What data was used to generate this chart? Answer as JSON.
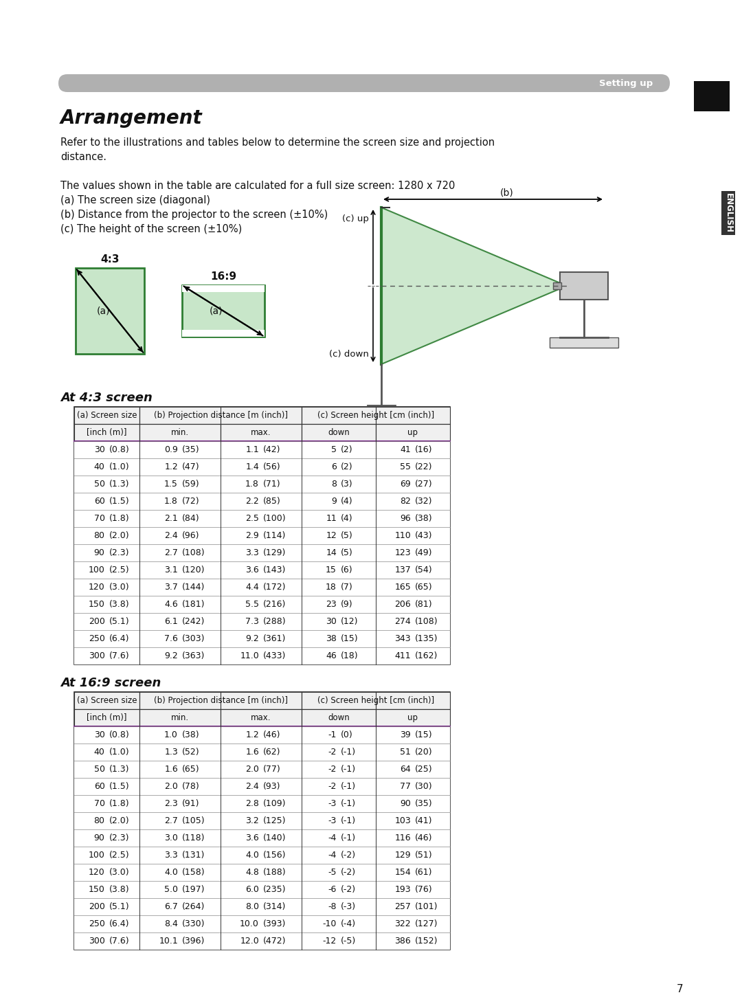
{
  "title": "Arrangement",
  "header_bar_text": "Setting up",
  "bg_color": "#ffffff",
  "header_bar_color": "#b0b0b0",
  "sidebar_color": "#1a1a1a",
  "body_text_line1": "Refer to the illustrations and tables below to determine the screen size and projection",
  "body_text_line2": "distance.",
  "body_text_line3": "The values shown in the table are calculated for a full size screen: 1280 x 720",
  "body_text_line4": "(a) The screen size (diagonal)",
  "body_text_line5": "(b) Distance from the projector to the screen (±10%)",
  "body_text_line6": "(c) The height of the screen (±10%)",
  "section1_title": "At 4:3 screen",
  "section2_title": "At 16:9 screen",
  "table43_data": [
    [
      "30",
      "(0.8)",
      "0.9",
      "(35)",
      "1.1",
      "(42)",
      "5",
      "(2)",
      "41",
      "(16)"
    ],
    [
      "40",
      "(1.0)",
      "1.2",
      "(47)",
      "1.4",
      "(56)",
      "6",
      "(2)",
      "55",
      "(22)"
    ],
    [
      "50",
      "(1.3)",
      "1.5",
      "(59)",
      "1.8",
      "(71)",
      "8",
      "(3)",
      "69",
      "(27)"
    ],
    [
      "60",
      "(1.5)",
      "1.8",
      "(72)",
      "2.2",
      "(85)",
      "9",
      "(4)",
      "82",
      "(32)"
    ],
    [
      "70",
      "(1.8)",
      "2.1",
      "(84)",
      "2.5",
      "(100)",
      "11",
      "(4)",
      "96",
      "(38)"
    ],
    [
      "80",
      "(2.0)",
      "2.4",
      "(96)",
      "2.9",
      "(114)",
      "12",
      "(5)",
      "110",
      "(43)"
    ],
    [
      "90",
      "(2.3)",
      "2.7",
      "(108)",
      "3.3",
      "(129)",
      "14",
      "(5)",
      "123",
      "(49)"
    ],
    [
      "100",
      "(2.5)",
      "3.1",
      "(120)",
      "3.6",
      "(143)",
      "15",
      "(6)",
      "137",
      "(54)"
    ],
    [
      "120",
      "(3.0)",
      "3.7",
      "(144)",
      "4.4",
      "(172)",
      "18",
      "(7)",
      "165",
      "(65)"
    ],
    [
      "150",
      "(3.8)",
      "4.6",
      "(181)",
      "5.5",
      "(216)",
      "23",
      "(9)",
      "206",
      "(81)"
    ],
    [
      "200",
      "(5.1)",
      "6.1",
      "(242)",
      "7.3",
      "(288)",
      "30",
      "(12)",
      "274",
      "(108)"
    ],
    [
      "250",
      "(6.4)",
      "7.6",
      "(303)",
      "9.2",
      "(361)",
      "38",
      "(15)",
      "343",
      "(135)"
    ],
    [
      "300",
      "(7.6)",
      "9.2",
      "(363)",
      "11.0",
      "(433)",
      "46",
      "(18)",
      "411",
      "(162)"
    ]
  ],
  "table169_data": [
    [
      "30",
      "(0.8)",
      "1.0",
      "(38)",
      "1.2",
      "(46)",
      "-1",
      "(0)",
      "39",
      "(15)"
    ],
    [
      "40",
      "(1.0)",
      "1.3",
      "(52)",
      "1.6",
      "(62)",
      "-2",
      "(-1)",
      "51",
      "(20)"
    ],
    [
      "50",
      "(1.3)",
      "1.6",
      "(65)",
      "2.0",
      "(77)",
      "-2",
      "(-1)",
      "64",
      "(25)"
    ],
    [
      "60",
      "(1.5)",
      "2.0",
      "(78)",
      "2.4",
      "(93)",
      "-2",
      "(-1)",
      "77",
      "(30)"
    ],
    [
      "70",
      "(1.8)",
      "2.3",
      "(91)",
      "2.8",
      "(109)",
      "-3",
      "(-1)",
      "90",
      "(35)"
    ],
    [
      "80",
      "(2.0)",
      "2.7",
      "(105)",
      "3.2",
      "(125)",
      "-3",
      "(-1)",
      "103",
      "(41)"
    ],
    [
      "90",
      "(2.3)",
      "3.0",
      "(118)",
      "3.6",
      "(140)",
      "-4",
      "(-1)",
      "116",
      "(46)"
    ],
    [
      "100",
      "(2.5)",
      "3.3",
      "(131)",
      "4.0",
      "(156)",
      "-4",
      "(-2)",
      "129",
      "(51)"
    ],
    [
      "120",
      "(3.0)",
      "4.0",
      "(158)",
      "4.8",
      "(188)",
      "-5",
      "(-2)",
      "154",
      "(61)"
    ],
    [
      "150",
      "(3.8)",
      "5.0",
      "(197)",
      "6.0",
      "(235)",
      "-6",
      "(-2)",
      "193",
      "(76)"
    ],
    [
      "200",
      "(5.1)",
      "6.7",
      "(264)",
      "8.0",
      "(314)",
      "-8",
      "(-3)",
      "257",
      "(101)"
    ],
    [
      "250",
      "(6.4)",
      "8.4",
      "(330)",
      "10.0",
      "(393)",
      "-10",
      "(-4)",
      "322",
      "(127)"
    ],
    [
      "300",
      "(7.6)",
      "10.1",
      "(396)",
      "12.0",
      "(472)",
      "-12",
      "(-5)",
      "386",
      "(152)"
    ]
  ],
  "page_number": "7",
  "english_label": "ENGLISH",
  "green_fill": "#c8e6c9",
  "green_border": "#2e7d32",
  "line_color": "#333333"
}
